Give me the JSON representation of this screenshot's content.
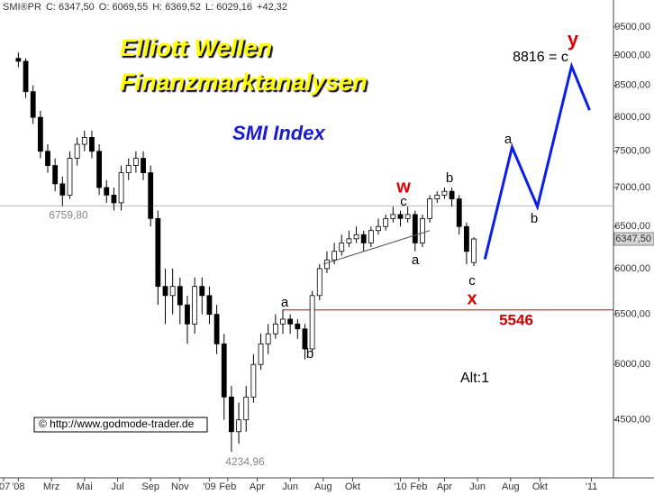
{
  "chart_data": {
    "type": "candlestick",
    "header": [
      "SMI®PR",
      "C: 6347,50",
      "O: 6069,55",
      "H: 6369,52",
      "L: 6029,16",
      "+42,32"
    ],
    "title": "Elliott Wellen",
    "subtitle": "Finanzmarktanalysen",
    "index_label": "SMI Index",
    "source": "© http://www.godmode-trader.de",
    "log_scale": true,
    "xlim": [
      -5,
      162
    ],
    "ylim": [
      4030,
      10000
    ],
    "yticks": [
      {
        "value": 4500,
        "label": "4500,00"
      },
      {
        "value": 5000,
        "label": "5000,00"
      },
      {
        "value": 5500,
        "label": "5500,00"
      },
      {
        "value": 6000,
        "label": "6000,00"
      },
      {
        "value": 6500,
        "label": "6500,00"
      },
      {
        "value": 7000,
        "label": "7000,00"
      },
      {
        "value": 7500,
        "label": "7500,00"
      },
      {
        "value": 8000,
        "label": "8000,00"
      },
      {
        "value": 8500,
        "label": "8500,00"
      },
      {
        "value": 9000,
        "label": "9000,00"
      },
      {
        "value": 9500,
        "label": "9500,00"
      }
    ],
    "xticks": [
      {
        "value": -4,
        "label": "'07"
      },
      {
        "value": 0,
        "label": "'08"
      },
      {
        "value": 9,
        "label": "Mrz"
      },
      {
        "value": 18,
        "label": "Mai"
      },
      {
        "value": 27,
        "label": "Jul"
      },
      {
        "value": 36,
        "label": "Sep"
      },
      {
        "value": 44,
        "label": "Nov"
      },
      {
        "value": 52,
        "label": "'09"
      },
      {
        "value": 57,
        "label": "Feb"
      },
      {
        "value": 65,
        "label": "Apr"
      },
      {
        "value": 74,
        "label": "Jun"
      },
      {
        "value": 83,
        "label": "Aug"
      },
      {
        "value": 91,
        "label": "Okt"
      },
      {
        "value": 104,
        "label": "'10"
      },
      {
        "value": 109,
        "label": "Feb"
      },
      {
        "value": 116,
        "label": "Apr"
      },
      {
        "value": 125,
        "label": "Jun"
      },
      {
        "value": 134,
        "label": "Aug"
      },
      {
        "value": 142,
        "label": "Okt"
      },
      {
        "value": 156,
        "label": "'11"
      }
    ],
    "x": [
      0,
      2,
      4,
      6,
      8,
      10,
      12,
      14,
      16,
      18,
      20,
      22,
      24,
      26,
      28,
      30,
      32,
      34,
      36,
      38,
      40,
      42,
      44,
      46,
      48,
      50,
      52,
      54,
      56,
      58,
      60,
      62,
      64,
      66,
      68,
      70,
      72,
      74,
      76,
      78,
      80,
      82,
      84,
      86,
      88,
      90,
      92,
      94,
      96,
      98,
      100,
      102,
      104,
      106,
      108,
      110,
      112,
      114,
      116,
      118,
      120,
      122,
      124
    ],
    "open": [
      8950,
      8900,
      8400,
      8000,
      7500,
      7300,
      7050,
      6900,
      7400,
      7600,
      7700,
      7500,
      7000,
      6900,
      6800,
      7200,
      7300,
      7400,
      7200,
      6600,
      5800,
      5700,
      5800,
      5600,
      5400,
      5800,
      5700,
      5500,
      5200,
      4700,
      4400,
      4500,
      4700,
      5000,
      5200,
      5300,
      5400,
      5450,
      5400,
      5350,
      5150,
      5700,
      6000,
      6100,
      6200,
      6300,
      6350,
      6400,
      6300,
      6450,
      6500,
      6600,
      6650,
      6600,
      6650,
      6300,
      6600,
      6850,
      6900,
      6950,
      6850,
      6500,
      6069.55
    ],
    "high": [
      9050,
      8950,
      8500,
      8100,
      7600,
      7400,
      7150,
      7500,
      7700,
      7800,
      7800,
      7600,
      7100,
      7000,
      7300,
      7400,
      7500,
      7500,
      7300,
      6700,
      6000,
      6000,
      5900,
      5700,
      5900,
      5900,
      5800,
      5600,
      5300,
      4800,
      4650,
      4800,
      5100,
      5300,
      5400,
      5500,
      5550,
      5500,
      5450,
      5400,
      5750,
      6050,
      6200,
      6300,
      6400,
      6450,
      6500,
      6450,
      6500,
      6600,
      6650,
      6750,
      6700,
      6750,
      6700,
      6650,
      6900,
      6950,
      7000,
      7000,
      6900,
      6550,
      6369.52
    ],
    "low": [
      8800,
      8300,
      7900,
      7400,
      7200,
      6950,
      6759.8,
      6850,
      7300,
      7500,
      7400,
      6900,
      6800,
      6700,
      6700,
      7100,
      7200,
      7100,
      6500,
      5600,
      5400,
      5500,
      5400,
      5200,
      5300,
      5500,
      5400,
      5100,
      4500,
      4234.96,
      4300,
      4400,
      4650,
      4950,
      5100,
      5250,
      5300,
      5300,
      5250,
      5050,
      5100,
      5650,
      5950,
      6050,
      6150,
      6250,
      6300,
      6200,
      6250,
      6400,
      6450,
      6550,
      6500,
      6550,
      6200,
      6250,
      6550,
      6800,
      6850,
      6750,
      6400,
      6050,
      6029.16
    ],
    "close": [
      8900,
      8400,
      8000,
      7500,
      7300,
      7050,
      6900,
      7400,
      7600,
      7700,
      7500,
      7000,
      6900,
      6800,
      7200,
      7300,
      7400,
      7200,
      6600,
      5800,
      5700,
      5800,
      5600,
      5400,
      5800,
      5700,
      5500,
      5200,
      4700,
      4400,
      4500,
      4700,
      5000,
      5200,
      5300,
      5400,
      5450,
      5400,
      5350,
      5150,
      5700,
      6000,
      6100,
      6200,
      6300,
      6350,
      6400,
      6300,
      6450,
      6500,
      6600,
      6650,
      6600,
      6650,
      6300,
      6600,
      6850,
      6900,
      6950,
      6850,
      6500,
      6200,
      6347.5
    ],
    "last_price": {
      "value": 6347.5,
      "label": "6347,50"
    },
    "levels": [
      {
        "value": 6759.8,
        "label": "6759,80",
        "color": "#b8b8b8"
      },
      {
        "value": 5546,
        "color": "#cc0000"
      }
    ],
    "low_label": {
      "value": 4234.96,
      "label": "4234,96"
    },
    "projection": {
      "color": "#0a1ee6",
      "x": [
        127,
        134.4,
        141.3,
        150.6,
        155.5
      ],
      "values": [
        6108,
        7558,
        6750,
        8816,
        8110
      ]
    },
    "trendline": {
      "x": [
        83,
        112
      ],
      "values": [
        6050,
        6450
      ]
    },
    "annotations": [
      {
        "text": "y",
        "color": "#dd0000"
      },
      {
        "text": "8816 = c",
        "color": "#000000"
      },
      {
        "text": "a",
        "color": "#000000"
      },
      {
        "text": "b",
        "color": "#000000"
      },
      {
        "text": "w",
        "color": "#dd0000"
      },
      {
        "text": "c",
        "color": "#000000"
      },
      {
        "text": "b",
        "color": "#000000"
      },
      {
        "text": "a",
        "color": "#000000"
      },
      {
        "text": "c",
        "color": "#000000"
      },
      {
        "text": "x",
        "color": "#dd0000"
      },
      {
        "text": "a",
        "color": "#000000"
      },
      {
        "text": "b",
        "color": "#000000"
      },
      {
        "text": "Alt:1",
        "color": "#000000"
      }
    ]
  }
}
